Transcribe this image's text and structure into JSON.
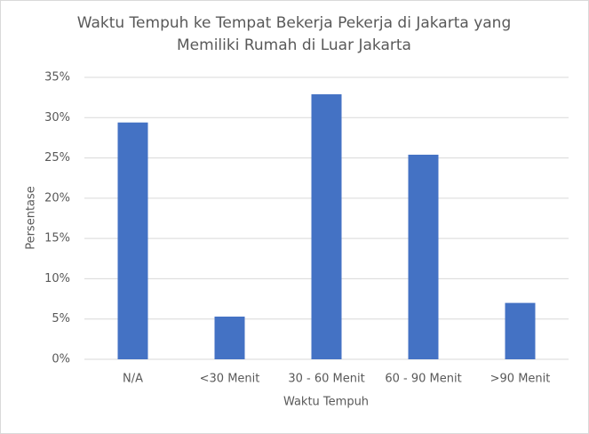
{
  "chart_data": {
    "type": "bar",
    "title": "Waktu Tempuh ke Tempat Bekerja Pekerja di Jakarta yang Memiliki Rumah di Luar Jakarta",
    "x_label": "Waktu Tempuh",
    "y_label": "Persentase",
    "categories": [
      "N/A",
      "<30 Menit",
      "30 - 60 Menit",
      "60 - 90 Menit",
      ">90 Menit"
    ],
    "values": [
      29.4,
      5.3,
      32.9,
      25.4,
      7.0
    ],
    "color": "#4472c4",
    "ylim": [
      0,
      35
    ],
    "yticks": [
      {
        "value": 0,
        "label": "0%"
      },
      {
        "value": 5,
        "label": "5%"
      },
      {
        "value": 10,
        "label": "10%"
      },
      {
        "value": 15,
        "label": "15%"
      },
      {
        "value": 20,
        "label": "20%"
      },
      {
        "value": 25,
        "label": "25%"
      },
      {
        "value": 30,
        "label": "30%"
      },
      {
        "value": 35,
        "label": "35%"
      }
    ],
    "grid": true
  }
}
